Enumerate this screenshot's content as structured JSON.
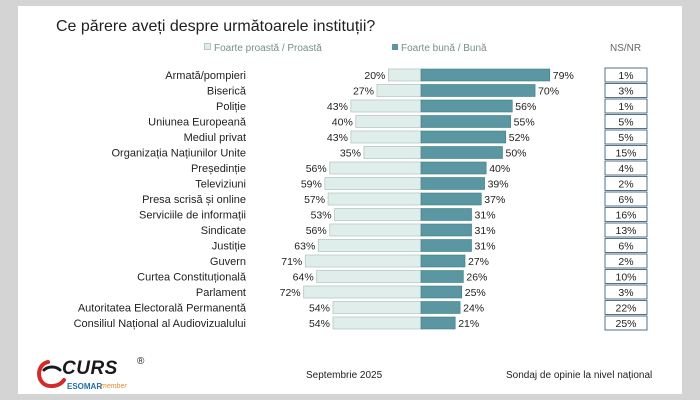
{
  "title": "Ce părere aveți despre următoarele instituții?",
  "legend": {
    "negative": "Foarte proastă / Proastă",
    "positive": "Foarte bună / Bună",
    "ns": "NS/NR"
  },
  "colors": {
    "negative_fill": "#dfeeea",
    "negative_border": "#b7c8c3",
    "positive_fill": "#5a97a3",
    "positive_border": "#3f7d88",
    "ns_border": "#2b4f6b"
  },
  "chart_data": {
    "type": "bar",
    "orientation": "horizontal-diverging",
    "title": "Ce părere aveți despre următoarele instituții?",
    "categories": [
      "Armată/pompieri",
      "Biserică",
      "Poliție",
      "Uniunea Europeană",
      "Mediul privat",
      "Organizația Națiunilor Unite",
      "Președinție",
      "Televiziuni",
      "Presa scrisă  și online",
      "Serviciile de informații",
      "Sindicate",
      "Justiție",
      "Guvern",
      "Curtea Constituțională",
      "Parlament",
      "Autoritatea Electorală Permanentă",
      "Consiliul Național al Audiovizualului"
    ],
    "series": [
      {
        "name": "Foarte proastă / Proastă",
        "values": [
          20,
          27,
          43,
          40,
          43,
          35,
          56,
          59,
          57,
          53,
          56,
          63,
          71,
          64,
          72,
          54,
          54
        ]
      },
      {
        "name": "Foarte bună / Bună",
        "values": [
          79,
          70,
          56,
          55,
          52,
          50,
          40,
          39,
          37,
          31,
          31,
          31,
          27,
          26,
          25,
          24,
          21
        ]
      },
      {
        "name": "NS/NR",
        "values": [
          1,
          3,
          1,
          5,
          5,
          15,
          4,
          2,
          6,
          16,
          13,
          6,
          2,
          10,
          3,
          22,
          25
        ]
      }
    ],
    "unit": "%",
    "legend_position": "top",
    "grid": false
  },
  "logo": {
    "brand": "CURS",
    "registered": "®",
    "esomar": "ESOMAR",
    "member": "member"
  },
  "footer": {
    "date": "Septembrie 2025",
    "note": "Sondaj de opinie la nivel național"
  }
}
